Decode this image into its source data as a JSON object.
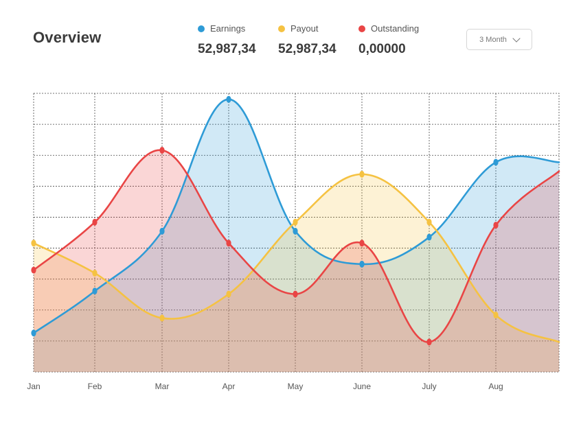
{
  "header": {
    "title": "Overview"
  },
  "legend": {
    "items": [
      {
        "label": "Earnings",
        "value": "52,987,34",
        "color": "#2e9bd6"
      },
      {
        "label": "Payout",
        "value": "52,987,34",
        "color": "#f5c242"
      },
      {
        "label": "Outstanding",
        "value": "0,00000",
        "color": "#e94545"
      }
    ]
  },
  "range_select": {
    "label": "3 Month",
    "icon": "chevron-down-icon"
  },
  "chart_data": {
    "type": "area",
    "categories": [
      "Jan",
      "Feb",
      "Mar",
      "Apr",
      "May",
      "June",
      "July",
      "Aug",
      ""
    ],
    "ylim": [
      0,
      9.3
    ],
    "grid": true,
    "series": [
      {
        "name": "Earnings",
        "color": "#2e9bd6",
        "values": [
          1.3,
          2.7,
          4.7,
          9.1,
          4.7,
          3.6,
          4.5,
          7.0,
          7.0
        ]
      },
      {
        "name": "Payout",
        "color": "#f5c242",
        "values": [
          4.3,
          3.3,
          1.8,
          2.6,
          5.0,
          6.6,
          5.0,
          1.9,
          1.0
        ]
      },
      {
        "name": "Outstanding",
        "color": "#e94545",
        "values": [
          3.4,
          5.0,
          7.4,
          4.3,
          2.6,
          4.3,
          1.0,
          4.9,
          6.7
        ]
      }
    ]
  }
}
